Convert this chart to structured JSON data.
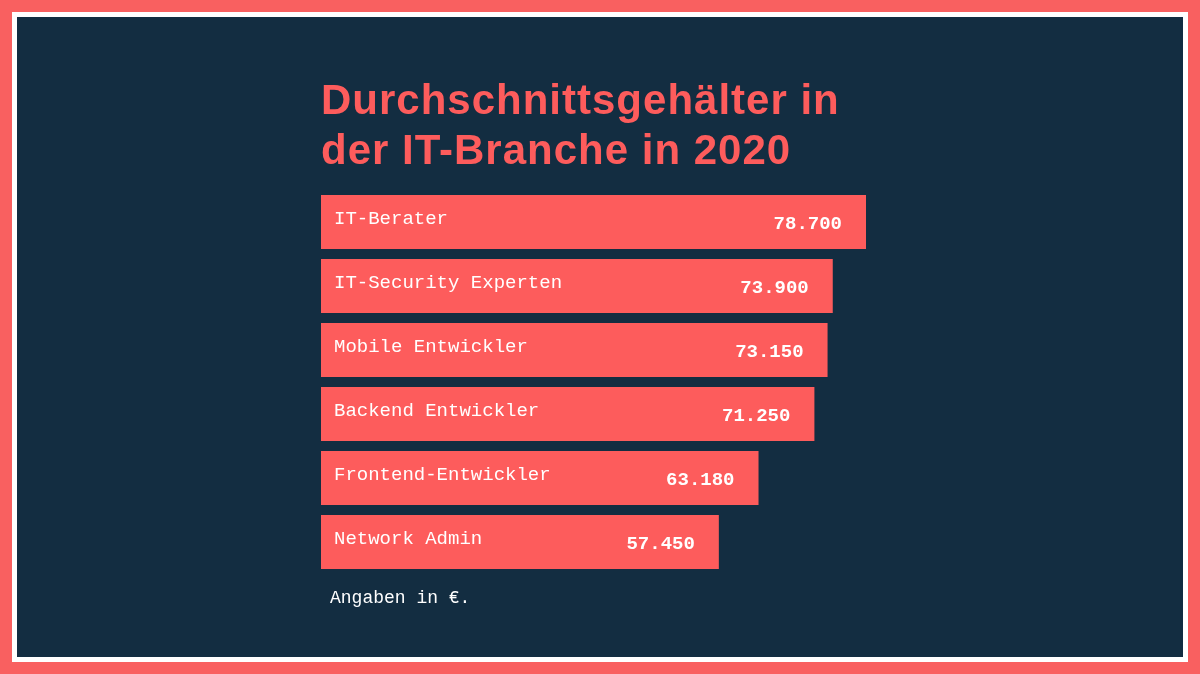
{
  "chart_data": {
    "type": "bar",
    "orientation": "horizontal",
    "title": "Durchschnittsgehälter in der IT-Branche in 2020",
    "categories": [
      "IT-Berater",
      "IT-Security Experten",
      "Mobile Entwickler",
      "Backend Entwickler",
      "Frontend-Entwickler",
      "Network Admin"
    ],
    "values": [
      78700,
      73900,
      73150,
      71250,
      63180,
      57450
    ],
    "value_labels": [
      "78.700",
      "73.900",
      "73.150",
      "71.250",
      "63.180",
      "57.450"
    ],
    "color": "#fd5c5c",
    "annotations": [
      "Angaben in €."
    ]
  }
}
